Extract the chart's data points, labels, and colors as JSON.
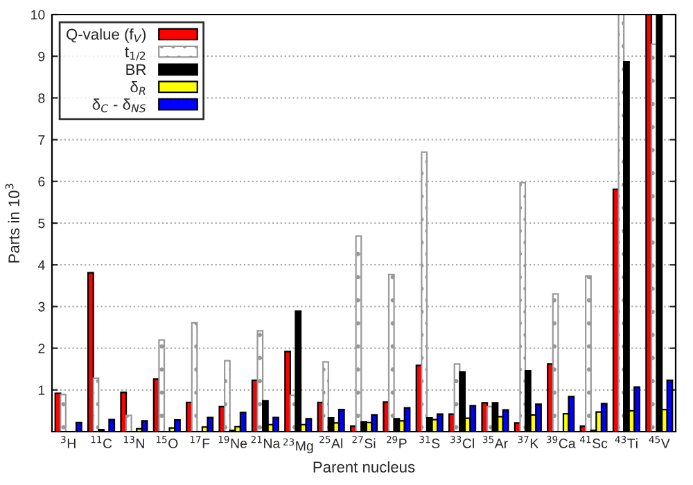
{
  "chart_data": {
    "type": "bar",
    "xlabel": "Parent nucleus",
    "ylabel": "Parts in 10$^{3}$",
    "categories": [
      "$^{3}$H",
      "$^{11}$C",
      "$^{13}$N",
      "$^{15}$O",
      "$^{17}$F",
      "$^{19}$Ne",
      "$^{21}$Na",
      "$^{23}$Mg",
      "$^{25}$Al",
      "$^{27}$Si",
      "$^{29}$P",
      "$^{31}$S",
      "$^{33}$Cl",
      "$^{35}$Ar",
      "$^{37}$K",
      "$^{39}$Ca",
      "$^{41}$Sc",
      "$^{43}$Ti",
      "$^{45}$V"
    ],
    "series": [
      {
        "name": "Q-value (f$_{V}$)",
        "color": "#ff0000",
        "values": [
          0.92,
          3.81,
          0.94,
          1.26,
          0.7,
          0.6,
          1.23,
          1.92,
          0.7,
          0.13,
          0.71,
          1.59,
          0.42,
          0.69,
          0.21,
          1.62,
          0.13,
          5.81,
          10
        ]
      },
      {
        "name": "t$_{1/2}$",
        "color": "#999999",
        "values": [
          0.89,
          1.28,
          0.39,
          2.2,
          2.61,
          1.7,
          2.42,
          0.87,
          1.67,
          4.69,
          3.77,
          6.7,
          1.62,
          0.6,
          5.97,
          3.3,
          3.73,
          10,
          9.29
        ]
      },
      {
        "name": "BR",
        "color": "#000000",
        "values": [
          null,
          0.05,
          null,
          null,
          null,
          0.03,
          0.74,
          2.89,
          0.33,
          0.23,
          0.31,
          0.33,
          1.43,
          0.69,
          1.46,
          null,
          0.03,
          8.87,
          10
        ]
      },
      {
        "name": "δ$_{R}$",
        "color": "#ffff00",
        "values": [
          null,
          null,
          0.07,
          0.09,
          0.11,
          0.12,
          0.17,
          0.17,
          0.21,
          0.22,
          0.26,
          0.29,
          0.32,
          0.36,
          0.4,
          0.43,
          0.47,
          0.5,
          0.53
        ]
      },
      {
        "name": "δ$_{C}$ - δ$_{NS}$",
        "color": "#0000ff",
        "values": [
          0.22,
          0.29,
          0.26,
          0.28,
          0.34,
          0.46,
          0.34,
          0.31,
          0.53,
          0.4,
          0.57,
          0.42,
          0.62,
          0.52,
          0.66,
          0.84,
          0.67,
          1.07,
          1.23
        ]
      }
    ],
    "ylim": [
      0,
      10
    ],
    "yticks": [
      1,
      2,
      3,
      4,
      5,
      6,
      7,
      8,
      9,
      10
    ],
    "grid": "y",
    "legend": "top left"
  }
}
